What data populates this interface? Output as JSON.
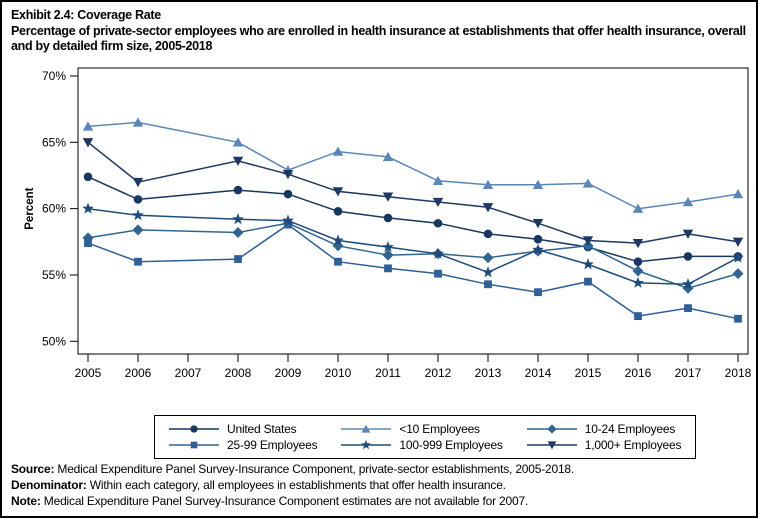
{
  "title": "Exhibit 2.4: Coverage Rate",
  "subtitle": "Percentage of private-sector employees who are enrolled in health insurance at establishments that offer health insurance, overall and by detailed firm size, 2005-2018",
  "chart_data": {
    "type": "line",
    "ylabel": "Percent",
    "ylim": [
      50,
      70
    ],
    "yticks": [
      70,
      65,
      60,
      55,
      50
    ],
    "ytick_suffix": "%",
    "xticks": [
      2005,
      2006,
      2007,
      2008,
      2009,
      2010,
      2011,
      2012,
      2013,
      2014,
      2015,
      2016,
      2017,
      2018
    ],
    "x": [
      2005,
      2006,
      2008,
      2009,
      2010,
      2011,
      2012,
      2013,
      2014,
      2015,
      2016,
      2017,
      2018
    ],
    "note_missing_year": 2007,
    "legend_position": "bottom",
    "grid": false,
    "series": [
      {
        "name": "United States",
        "marker": "circle",
        "color": "#17375e",
        "values": [
          62.4,
          60.7,
          61.4,
          61.1,
          59.8,
          59.3,
          58.9,
          58.1,
          57.7,
          57.1,
          56.0,
          56.4,
          56.4
        ]
      },
      {
        "name": "<10 Employees",
        "marker": "triangle-up",
        "color": "#5b87b7",
        "values": [
          66.2,
          66.5,
          65.0,
          62.9,
          64.3,
          63.9,
          62.1,
          61.8,
          61.8,
          61.9,
          60.0,
          60.5,
          61.1
        ]
      },
      {
        "name": "10-24 Employees",
        "marker": "diamond",
        "color": "#31648f",
        "values": [
          57.8,
          58.4,
          58.2,
          58.9,
          57.2,
          56.5,
          56.6,
          56.3,
          56.8,
          57.2,
          55.3,
          54.0,
          55.1
        ]
      },
      {
        "name": "25-99 Employees",
        "marker": "square",
        "color": "#2e6096",
        "values": [
          57.4,
          56.0,
          56.2,
          58.8,
          56.0,
          55.5,
          55.1,
          54.3,
          53.7,
          54.5,
          51.9,
          52.5,
          51.7
        ]
      },
      {
        "name": "100-999 Employees",
        "marker": "star",
        "color": "#1e4b7a",
        "values": [
          60.0,
          59.5,
          59.2,
          59.1,
          57.6,
          57.1,
          56.6,
          55.2,
          56.9,
          55.8,
          54.4,
          54.3,
          56.3
        ]
      },
      {
        "name": "1,000+ Employees",
        "marker": "triangle-down",
        "color": "#1f3864",
        "values": [
          65.0,
          62.0,
          63.6,
          62.6,
          61.3,
          60.9,
          60.5,
          60.1,
          58.9,
          57.6,
          57.4,
          58.1,
          57.5
        ]
      }
    ]
  },
  "footnotes": [
    {
      "label": "Source:",
      "text": " Medical Expenditure Panel Survey-Insurance Component, private-sector establishments, 2005-2018."
    },
    {
      "label": "Denominator:",
      "text": " Within each category, all employees in establishments that offer health insurance."
    },
    {
      "label": "Note:",
      "text": " Medical Expenditure Panel Survey-Insurance Component estimates are not available for 2007."
    }
  ]
}
